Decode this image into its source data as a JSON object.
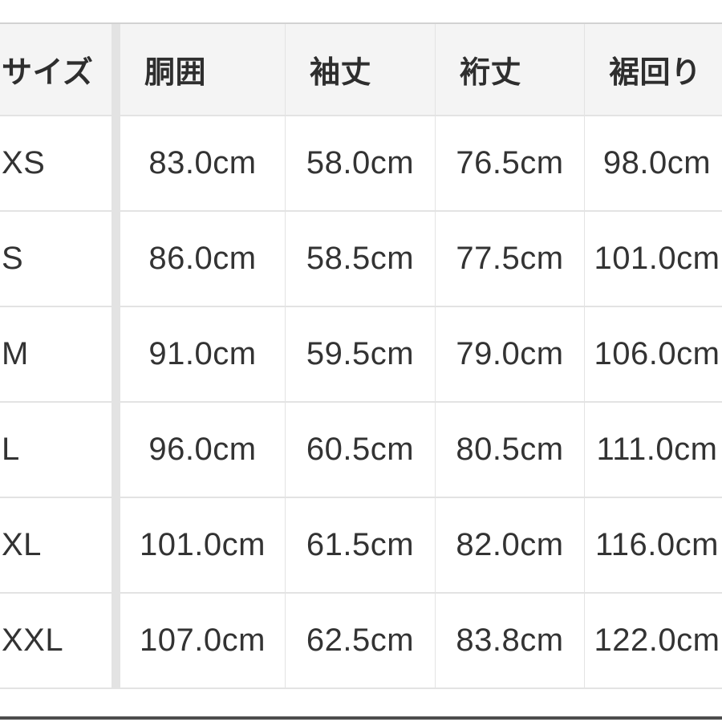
{
  "table": {
    "columns": {
      "size": "サイズ",
      "chest": "胴囲",
      "sleeve": "袖丈",
      "yuki": "裄丈",
      "hem": "裾回り"
    },
    "rows": [
      {
        "size": "XS",
        "values": [
          "83.0cm",
          "58.0cm",
          "76.5cm",
          "98.0cm"
        ]
      },
      {
        "size": "S",
        "values": [
          "86.0cm",
          "58.5cm",
          "77.5cm",
          "101.0cm"
        ]
      },
      {
        "size": "M",
        "values": [
          "91.0cm",
          "59.5cm",
          "79.0cm",
          "106.0cm"
        ]
      },
      {
        "size": "L",
        "values": [
          "96.0cm",
          "60.5cm",
          "80.5cm",
          "111.0cm"
        ]
      },
      {
        "size": "XL",
        "values": [
          "101.0cm",
          "61.5cm",
          "82.0cm",
          "116.0cm"
        ]
      },
      {
        "size": "XXL",
        "values": [
          "107.0cm",
          "62.5cm",
          "83.8cm",
          "122.0cm"
        ]
      }
    ]
  },
  "colors": {
    "header_bg": "#f4f4f4",
    "border": "#e3e3e3",
    "top_border": "#d2d2d2",
    "text": "#333333",
    "header_text": "#2e2e2e",
    "bottom_bar": "#4d4d4d",
    "background": "#ffffff"
  }
}
